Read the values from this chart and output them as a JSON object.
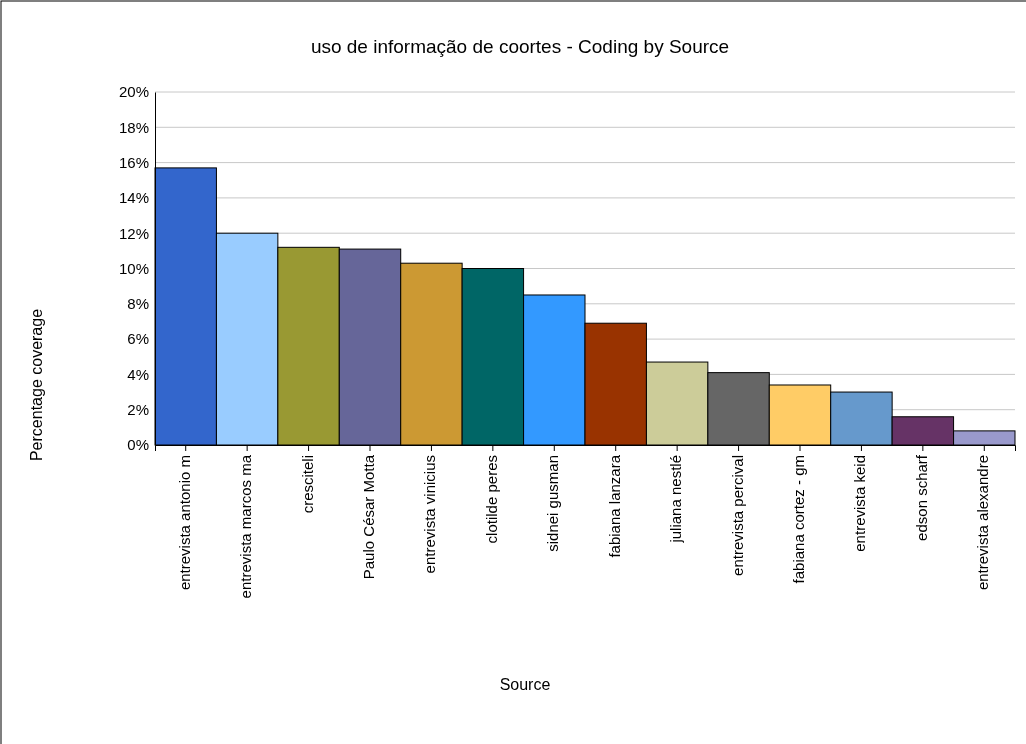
{
  "chart_data": {
    "type": "bar",
    "title": "uso de informação de coortes - Coding by Source",
    "xlabel": "Source",
    "ylabel": "Percentage coverage",
    "categories": [
      "entrevista antonio m",
      "entrevista marcos ma",
      "cresciteli",
      "Paulo César Motta",
      "entrevista vinicius",
      "clotilde peres",
      "sidnei gusman",
      "fabiana lanzara",
      "juliana nestlé",
      "entrevista percival",
      "fabiana cortez - gm",
      "entrevista keid",
      "edson scharf",
      "entrevista alexandre"
    ],
    "values": [
      15.7,
      12.0,
      11.2,
      11.1,
      10.3,
      10.0,
      8.5,
      6.9,
      4.7,
      4.1,
      3.4,
      3.0,
      1.6,
      0.8
    ],
    "colors": [
      "#3366cc",
      "#99ccff",
      "#999933",
      "#666699",
      "#cc9933",
      "#006666",
      "#3399ff",
      "#993300",
      "#cccc99",
      "#666666",
      "#ffcc66",
      "#6699cc",
      "#663366",
      "#9999cc"
    ],
    "ylim": [
      0,
      20
    ],
    "yticks": [
      {
        "value": 0,
        "label": "0%"
      },
      {
        "value": 2,
        "label": "2%"
      },
      {
        "value": 4,
        "label": "4%"
      },
      {
        "value": 6,
        "label": "6%"
      },
      {
        "value": 8,
        "label": "8%"
      },
      {
        "value": 10,
        "label": "10%"
      },
      {
        "value": 12,
        "label": "12%"
      },
      {
        "value": 14,
        "label": "14%"
      },
      {
        "value": 16,
        "label": "16%"
      },
      {
        "value": 18,
        "label": "18%"
      },
      {
        "value": 20,
        "label": "20%"
      }
    ],
    "grid": "y"
  }
}
